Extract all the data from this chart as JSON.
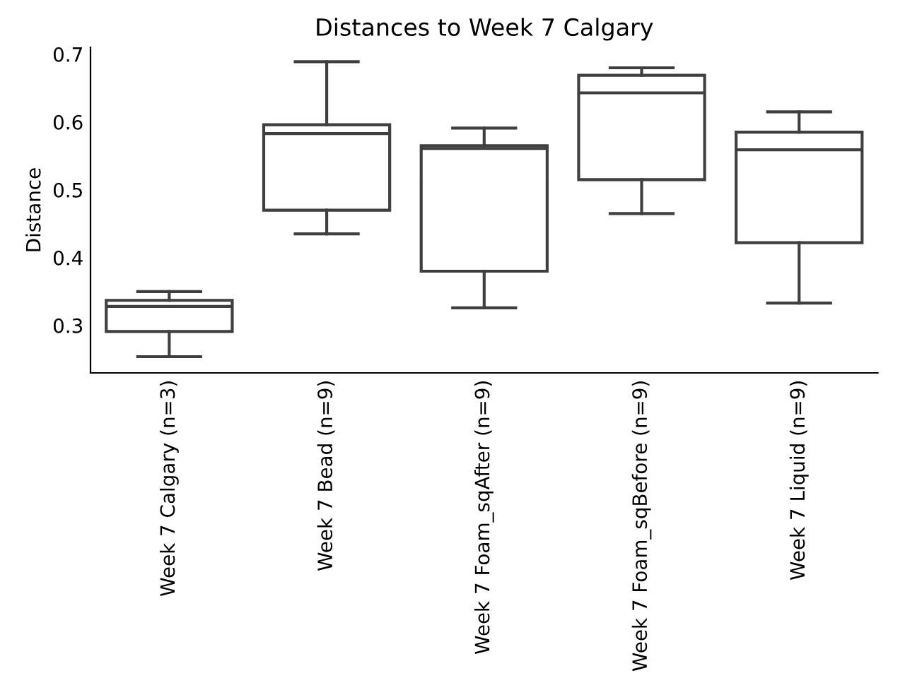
{
  "chart_data": {
    "type": "box",
    "title": "Distances to Week 7 Calgary",
    "ylabel": "Distance",
    "categories": [
      "Week 7 Calgary (n=3)",
      "Week 7 Bead (n=9)",
      "Week 7 Foam_sqAfter (n=9)",
      "Week 7 Foam_sqBefore (n=9)",
      "Week 7 Liquid (n=9)"
    ],
    "boxes": [
      {
        "low": 0.254,
        "q1": 0.291,
        "median": 0.328,
        "q3": 0.337,
        "high": 0.35
      },
      {
        "low": 0.435,
        "q1": 0.47,
        "median": 0.583,
        "q3": 0.596,
        "high": 0.689
      },
      {
        "low": 0.326,
        "q1": 0.38,
        "median": 0.561,
        "q3": 0.565,
        "high": 0.591
      },
      {
        "low": 0.465,
        "q1": 0.515,
        "median": 0.643,
        "q3": 0.669,
        "high": 0.68
      },
      {
        "low": 0.333,
        "q1": 0.422,
        "median": 0.559,
        "q3": 0.585,
        "high": 0.615
      }
    ],
    "color": "#3f3f3f",
    "ylim": [
      0.23,
      0.71
    ],
    "yticks": [
      0.3,
      0.4,
      0.5,
      0.6,
      0.7
    ],
    "grid": false
  }
}
